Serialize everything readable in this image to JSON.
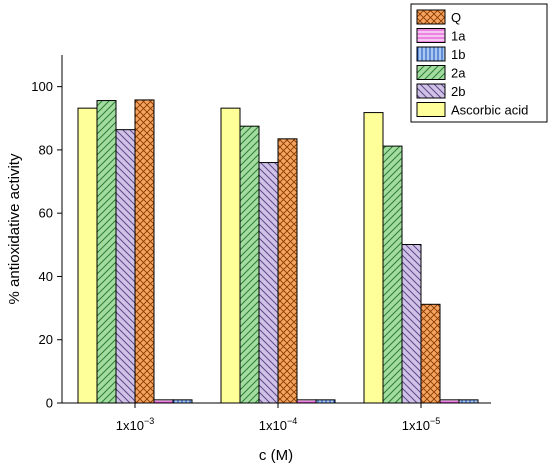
{
  "chart_data": {
    "type": "bar",
    "title": "",
    "xlabel": "c (M)",
    "ylabel": "% antioxidative activity",
    "ylim": [
      0,
      110
    ],
    "yticks": [
      0,
      20,
      40,
      60,
      80,
      100
    ],
    "categories": [
      {
        "base": "1x10",
        "exp": "−3"
      },
      {
        "base": "1x10",
        "exp": "−4"
      },
      {
        "base": "1x10",
        "exp": "−5"
      }
    ],
    "draw_order": [
      "Ascorbic acid",
      "2a",
      "2b",
      "Q",
      "1a",
      "1b"
    ],
    "legend_placement": "top-right",
    "series": [
      {
        "name": "Q",
        "values": [
          95.8,
          83.5,
          31.2
        ],
        "fill": "#F4A460",
        "pattern": "crosshatch",
        "pattern_color": "#8B3A00"
      },
      {
        "name": "1a",
        "values": [
          1.0,
          1.0,
          1.0
        ],
        "fill": "#F6C6F2",
        "pattern": "horizontal",
        "pattern_color": "#E040D0"
      },
      {
        "name": "1b",
        "values": [
          1.0,
          1.0,
          1.0
        ],
        "fill": "#A9C8F0",
        "pattern": "vertical",
        "pattern_color": "#1A4FBF"
      },
      {
        "name": "2a",
        "values": [
          95.6,
          87.5,
          81.2
        ],
        "fill": "#A3DCA0",
        "pattern": "diagonal-right",
        "pattern_color": "#2E7D32"
      },
      {
        "name": "2b",
        "values": [
          86.4,
          76.0,
          50.1
        ],
        "fill": "#CFC2E6",
        "pattern": "diagonal-left",
        "pattern_color": "#5E4A8A"
      },
      {
        "name": "Ascorbic acid",
        "values": [
          93.2,
          93.2,
          91.8
        ],
        "fill": "#FFFF99",
        "pattern": "none",
        "pattern_color": "#000000"
      }
    ]
  }
}
